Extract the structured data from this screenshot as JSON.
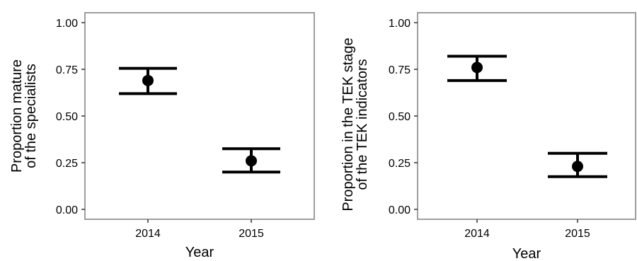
{
  "chart_data": [
    {
      "type": "scatter",
      "xlabel": "Year",
      "ylabel_lines": [
        "Proportion mature",
        "of the specialists"
      ],
      "categories": [
        "2014",
        "2015"
      ],
      "ylim": [
        0,
        1
      ],
      "yticks": [
        "0.00",
        "0.25",
        "0.50",
        "0.75",
        "1.00"
      ],
      "ytick_values": [
        0,
        0.25,
        0.5,
        0.75,
        1.0
      ],
      "series": [
        {
          "values": [
            0.69,
            0.26
          ],
          "lower": [
            0.62,
            0.2
          ],
          "upper": [
            0.755,
            0.325
          ]
        }
      ],
      "grid": false
    },
    {
      "type": "scatter",
      "xlabel": "Year",
      "ylabel_lines": [
        "Proportion in the TEK stage",
        "of the TEK indicators"
      ],
      "categories": [
        "2014",
        "2015"
      ],
      "ylim": [
        0,
        1
      ],
      "yticks": [
        "0.00",
        "0.25",
        "0.50",
        "0.75",
        "1.00"
      ],
      "ytick_values": [
        0,
        0.25,
        0.5,
        0.75,
        1.0
      ],
      "series": [
        {
          "values": [
            0.76,
            0.23
          ],
          "lower": [
            0.69,
            0.175
          ],
          "upper": [
            0.82,
            0.3
          ]
        }
      ],
      "grid": false
    }
  ]
}
